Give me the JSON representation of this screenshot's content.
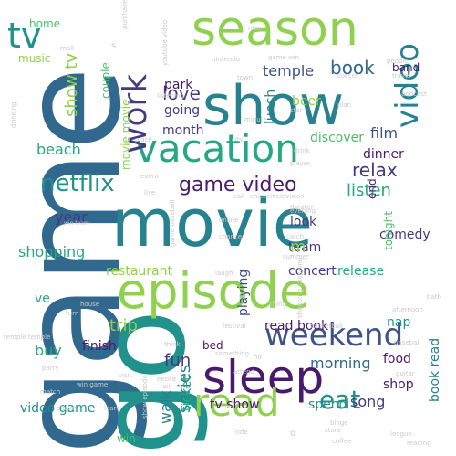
{
  "palette": {
    "yellow": "#c8df2e",
    "lime": "#8fd14f",
    "green": "#4cbf6b",
    "teal_green": "#24a884",
    "teal": "#21918c",
    "teal_blue": "#26828e",
    "blue": "#31688e",
    "indigo": "#3b528b",
    "violet": "#443983",
    "purple": "#481a6c",
    "light_gray": "#c9c9c9"
  },
  "words": [
    {
      "text": "game",
      "color": "blue"
    },
    {
      "text": "go",
      "color": "teal"
    },
    {
      "text": "movie",
      "color": "teal_blue"
    },
    {
      "text": "show",
      "color": "teal_blue"
    },
    {
      "text": "season",
      "color": "lime"
    },
    {
      "text": "episode",
      "color": "lime"
    },
    {
      "text": "sleep",
      "color": "purple"
    },
    {
      "text": "vacation",
      "color": "teal_green"
    },
    {
      "text": "read",
      "color": "lime"
    },
    {
      "text": "work",
      "color": "violet"
    },
    {
      "text": "weekend",
      "color": "indigo"
    },
    {
      "text": "tv",
      "color": "teal"
    },
    {
      "text": "video",
      "color": "teal_blue"
    },
    {
      "text": "eat",
      "color": "teal"
    },
    {
      "text": "netflix",
      "color": "teal"
    },
    {
      "text": "game video",
      "color": "purple"
    },
    {
      "text": "book",
      "color": "blue"
    },
    {
      "text": "love",
      "color": "violet"
    },
    {
      "text": "show tv",
      "color": "lime"
    },
    {
      "text": "temple",
      "color": "indigo"
    },
    {
      "text": "relax",
      "color": "violet"
    },
    {
      "text": "listen",
      "color": "teal_green"
    },
    {
      "text": "trip",
      "color": "lime"
    },
    {
      "text": "fun",
      "color": "violet"
    },
    {
      "text": "series",
      "color": "teal_blue"
    },
    {
      "text": "shopping",
      "color": "teal_green"
    },
    {
      "text": "beach",
      "color": "teal_green"
    },
    {
      "text": "month",
      "color": "violet"
    },
    {
      "text": "going",
      "color": "violet"
    },
    {
      "text": "year",
      "color": "violet"
    },
    {
      "text": "restaurant",
      "color": "lime"
    },
    {
      "text": "film",
      "color": "indigo"
    },
    {
      "text": "dinner",
      "color": "purple"
    },
    {
      "text": "discover",
      "color": "green"
    },
    {
      "text": "look",
      "color": "violet"
    },
    {
      "text": "team",
      "color": "violet"
    },
    {
      "text": "concert",
      "color": "violet"
    },
    {
      "text": "release",
      "color": "teal_green"
    },
    {
      "text": "comedy",
      "color": "violet"
    },
    {
      "text": "playing",
      "color": "indigo"
    },
    {
      "text": "morning",
      "color": "blue"
    },
    {
      "text": "read book",
      "color": "purple"
    },
    {
      "text": "buy",
      "color": "teal_green"
    },
    {
      "text": "finish",
      "color": "purple"
    },
    {
      "text": "walk",
      "color": "teal_blue"
    },
    {
      "text": "ticket",
      "color": "teal_green"
    },
    {
      "text": "tv show",
      "color": "purple"
    },
    {
      "text": "spend",
      "color": "teal"
    },
    {
      "text": "song",
      "color": "violet"
    },
    {
      "text": "shop",
      "color": "purple"
    },
    {
      "text": "food",
      "color": "purple"
    },
    {
      "text": "book read",
      "color": "teal_blue"
    },
    {
      "text": "video game",
      "color": "teal"
    },
    {
      "text": "nap",
      "color": "teal"
    },
    {
      "text": "lunch",
      "color": "teal_blue"
    },
    {
      "text": "park",
      "color": "purple"
    },
    {
      "text": "home",
      "color": "green"
    },
    {
      "text": "music",
      "color": "lime"
    },
    {
      "text": "couple",
      "color": "green"
    },
    {
      "text": "band",
      "color": "purple"
    },
    {
      "text": "beer",
      "color": "lime"
    },
    {
      "text": "movie movie",
      "color": "lime"
    },
    {
      "text": "end",
      "color": "purple"
    },
    {
      "text": "tonight",
      "color": "green"
    },
    {
      "text": "bed",
      "color": "purple"
    },
    {
      "text": "win",
      "color": "green"
    },
    {
      "text": "ve",
      "color": "teal_green"
    },
    {
      "text": "m",
      "color": "lime"
    },
    {
      "text": "youtube video",
      "color": "light_gray"
    },
    {
      "text": "nintendo",
      "color": "light_gray"
    },
    {
      "text": "game win",
      "color": "light_gray"
    },
    {
      "text": "win team",
      "color": "light_gray"
    },
    {
      "text": "people",
      "color": "light_gray"
    },
    {
      "text": "travel",
      "color": "light_gray"
    },
    {
      "text": "podcast",
      "color": "light_gray"
    },
    {
      "text": "soccer",
      "color": "light_gray"
    },
    {
      "text": "plan",
      "color": "light_gray"
    },
    {
      "text": "star",
      "color": "light_gray"
    },
    {
      "text": "city",
      "color": "light_gray"
    },
    {
      "text": "minute",
      "color": "light_gray"
    },
    {
      "text": "listening",
      "color": "light_gray"
    },
    {
      "text": "place",
      "color": "light_gray"
    },
    {
      "text": "drinking",
      "color": "light_gray"
    },
    {
      "text": "player",
      "color": "light_gray"
    },
    {
      "text": "drink",
      "color": "light_gray"
    },
    {
      "text": "television",
      "color": "light_gray"
    },
    {
      "text": "chicken",
      "color": "light_gray"
    },
    {
      "text": "call",
      "color": "light_gray"
    },
    {
      "text": "theater",
      "color": "light_gray"
    },
    {
      "text": "live",
      "color": "light_gray"
    },
    {
      "text": "event",
      "color": "light_gray"
    },
    {
      "text": "evening",
      "color": "light_gray"
    },
    {
      "text": "online",
      "color": "light_gray"
    },
    {
      "text": "catch",
      "color": "light_gray"
    },
    {
      "text": "chance",
      "color": "light_gray"
    },
    {
      "text": "summer",
      "color": "light_gray"
    },
    {
      "text": "laugh",
      "color": "light_gray"
    },
    {
      "text": "bath",
      "color": "light_gray"
    },
    {
      "text": "afternoon",
      "color": "light_gray"
    },
    {
      "text": "turn",
      "color": "light_gray"
    },
    {
      "text": "house",
      "color": "light_gray"
    },
    {
      "text": "temple temple",
      "color": "light_gray"
    },
    {
      "text": "sit",
      "color": "light_gray"
    },
    {
      "text": "thing",
      "color": "light_gray"
    },
    {
      "text": "shopping shopping",
      "color": "light_gray"
    },
    {
      "text": "festival",
      "color": "light_gray"
    },
    {
      "text": "something",
      "color": "light_gray"
    },
    {
      "text": "think",
      "color": "light_gray"
    },
    {
      "text": "baseball",
      "color": "light_gray"
    },
    {
      "text": "hit",
      "color": "light_gray"
    },
    {
      "text": "attend",
      "color": "light_gray"
    },
    {
      "text": "guitar",
      "color": "light_gray"
    },
    {
      "text": "party",
      "color": "light_gray"
    },
    {
      "text": "visit",
      "color": "light_gray"
    },
    {
      "text": "excite",
      "color": "light_gray"
    },
    {
      "text": "air",
      "color": "light_gray"
    },
    {
      "text": "match",
      "color": "light_gray"
    },
    {
      "text": "win game",
      "color": "light_gray"
    },
    {
      "text": "album",
      "color": "light_gray"
    },
    {
      "text": "learn",
      "color": "light_gray"
    },
    {
      "text": "show episode",
      "color": "light_gray"
    },
    {
      "text": "ride",
      "color": "light_gray"
    },
    {
      "text": "binge",
      "color": "light_gray"
    },
    {
      "text": "store",
      "color": "light_gray"
    },
    {
      "text": "coffee",
      "color": "light_gray"
    },
    {
      "text": "league",
      "color": "light_gray"
    },
    {
      "text": "reading",
      "color": "light_gray"
    },
    {
      "text": "town",
      "color": "light_gray"
    },
    {
      "text": "purchase",
      "color": "light_gray"
    },
    {
      "text": "new",
      "color": "light_gray"
    },
    {
      "text": "mall",
      "color": "light_gray"
    },
    {
      "text": "game baseball",
      "color": "light_gray"
    },
    {
      "text": "basketball",
      "color": "light_gray"
    },
    {
      "text": "s",
      "color": "light_gray"
    },
    {
      "text": "o",
      "color": "light_gray"
    }
  ]
}
